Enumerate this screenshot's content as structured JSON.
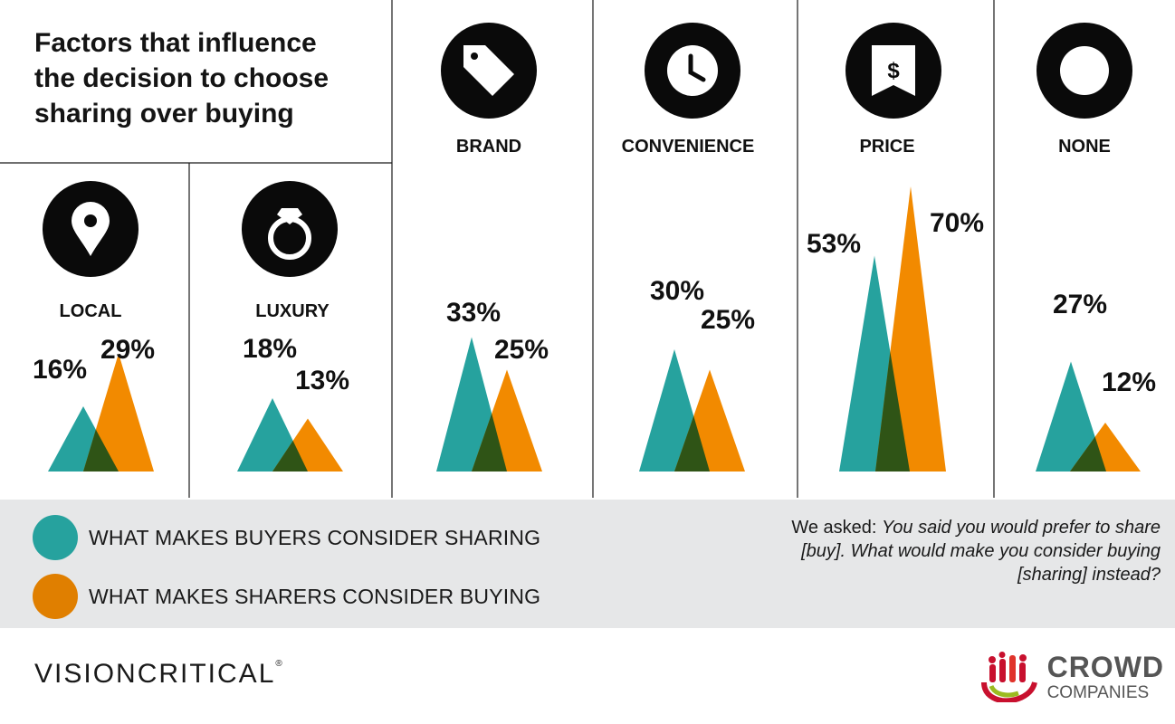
{
  "title": "Factors that influence the decision to choose sharing over buying",
  "colors": {
    "buyers": "#26a29e",
    "sharers": "#f28a00",
    "overlap": "#2f5416",
    "icon_bg": "#0a0a0a",
    "legend_bg": "#e6e7e8"
  },
  "chart_data": {
    "type": "area",
    "categories": [
      "LOCAL",
      "LUXURY",
      "BRAND",
      "CONVENIENCE",
      "PRICE",
      "NONE"
    ],
    "icons": [
      "map-pin-icon",
      "diamond-ring-icon",
      "price-tag-icon",
      "clock-icon",
      "price-label-dollar-icon",
      "empty-circle-icon"
    ],
    "series": [
      {
        "name": "WHAT MAKES BUYERS CONSIDER SHARING",
        "values": [
          16,
          18,
          33,
          30,
          53,
          27
        ],
        "labels": [
          "16%",
          "18%",
          "33%",
          "30%",
          "53%",
          "27%"
        ]
      },
      {
        "name": "WHAT MAKES SHARERS CONSIDER BUYING",
        "values": [
          29,
          13,
          25,
          25,
          70,
          12
        ],
        "labels": [
          "29%",
          "13%",
          "25%",
          "25%",
          "70%",
          "12%"
        ]
      }
    ]
  },
  "legend": {
    "buyers_label": "WHAT MAKES BUYERS CONSIDER SHARING",
    "sharers_label": "WHAT MAKES SHARERS CONSIDER BUYING"
  },
  "note": {
    "prefix": "We asked:",
    "question": "You said you would prefer to share [buy]. What would make you consider buying [sharing] instead?"
  },
  "footer": {
    "brand_left": "VISIONCRITICAL",
    "registered": "®",
    "brand_right_line1": "CROWD",
    "brand_right_line2": "COMPANIES"
  }
}
